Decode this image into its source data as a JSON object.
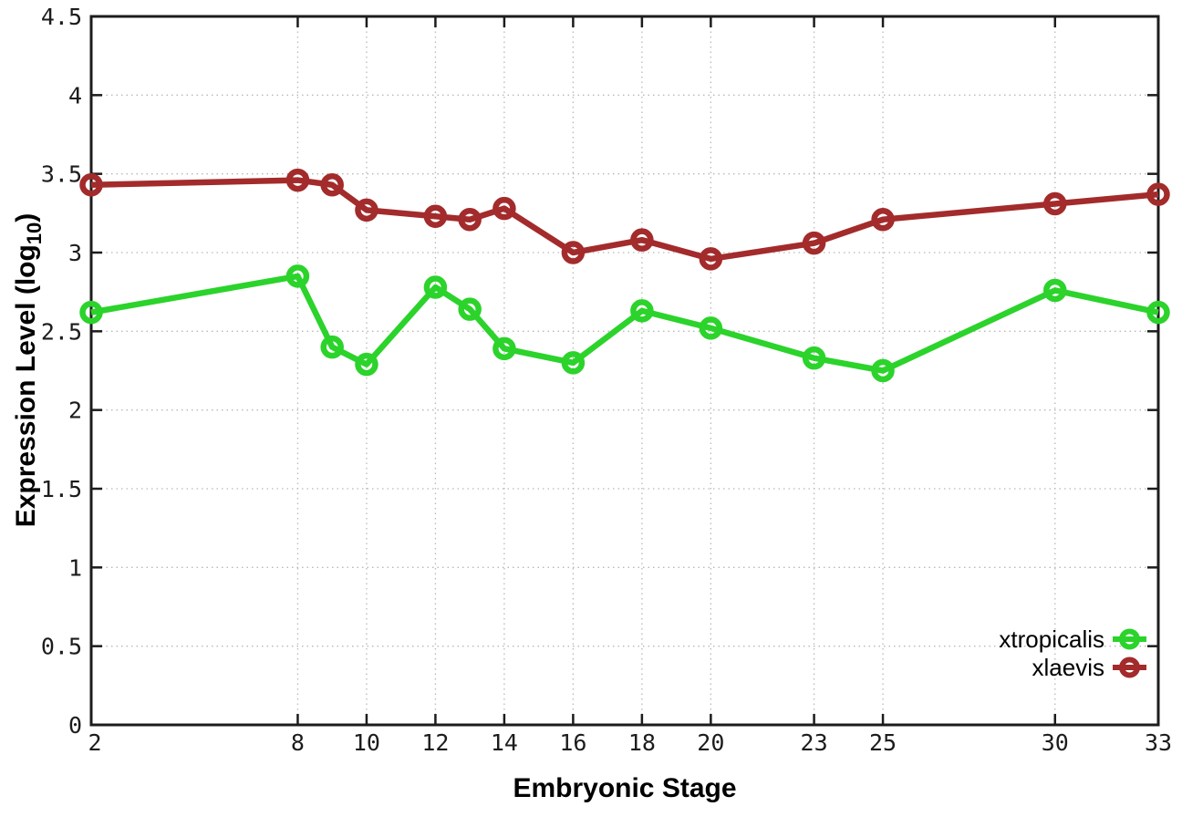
{
  "chart_data": {
    "type": "line",
    "title": "",
    "xlabel": "Embryonic Stage",
    "ylabel": "Expression Level (log10)",
    "ylabel_parts": {
      "main": "Expression Level (log",
      "sub": "10",
      "close": ")"
    },
    "xlim": [
      2,
      33
    ],
    "ylim": [
      0,
      4.5
    ],
    "grid": true,
    "legend_position": "inside-bottom-right",
    "x": [
      2,
      8,
      9,
      10,
      12,
      13,
      14,
      16,
      18,
      20,
      23,
      25,
      30,
      33
    ],
    "xticks": [
      {
        "v": 2,
        "label": "2"
      },
      {
        "v": 8,
        "label": "8"
      },
      {
        "v": 10,
        "label": "10"
      },
      {
        "v": 12,
        "label": "12"
      },
      {
        "v": 14,
        "label": "14"
      },
      {
        "v": 16,
        "label": "16"
      },
      {
        "v": 18,
        "label": "18"
      },
      {
        "v": 20,
        "label": "20"
      },
      {
        "v": 23,
        "label": "23"
      },
      {
        "v": 25,
        "label": "25"
      },
      {
        "v": 30,
        "label": "30"
      },
      {
        "v": 33,
        "label": "33"
      }
    ],
    "yticks": [
      {
        "v": 0,
        "label": "0"
      },
      {
        "v": 0.5,
        "label": "0.5"
      },
      {
        "v": 1,
        "label": "1"
      },
      {
        "v": 1.5,
        "label": "1.5"
      },
      {
        "v": 2,
        "label": "2"
      },
      {
        "v": 2.5,
        "label": "2.5"
      },
      {
        "v": 3,
        "label": "3"
      },
      {
        "v": 3.5,
        "label": "3.5"
      },
      {
        "v": 4,
        "label": "4"
      },
      {
        "v": 4.5,
        "label": "4.5"
      }
    ],
    "series": [
      {
        "name": "xtropicalis",
        "color": "#2bd32b",
        "values": [
          2.62,
          2.85,
          2.4,
          2.29,
          2.78,
          2.64,
          2.39,
          2.3,
          2.63,
          2.52,
          2.33,
          2.25,
          2.76,
          2.62
        ]
      },
      {
        "name": "xlaevis",
        "color": "#a32b2b",
        "values": [
          3.43,
          3.46,
          3.43,
          3.27,
          3.23,
          3.21,
          3.28,
          3.0,
          3.08,
          2.96,
          3.06,
          3.21,
          3.31,
          3.37
        ]
      }
    ],
    "style": {
      "grid_color": "#b8b8b8",
      "axis_color": "#1c1c1c",
      "background": "#ffffff",
      "text_color": "#000000"
    }
  }
}
